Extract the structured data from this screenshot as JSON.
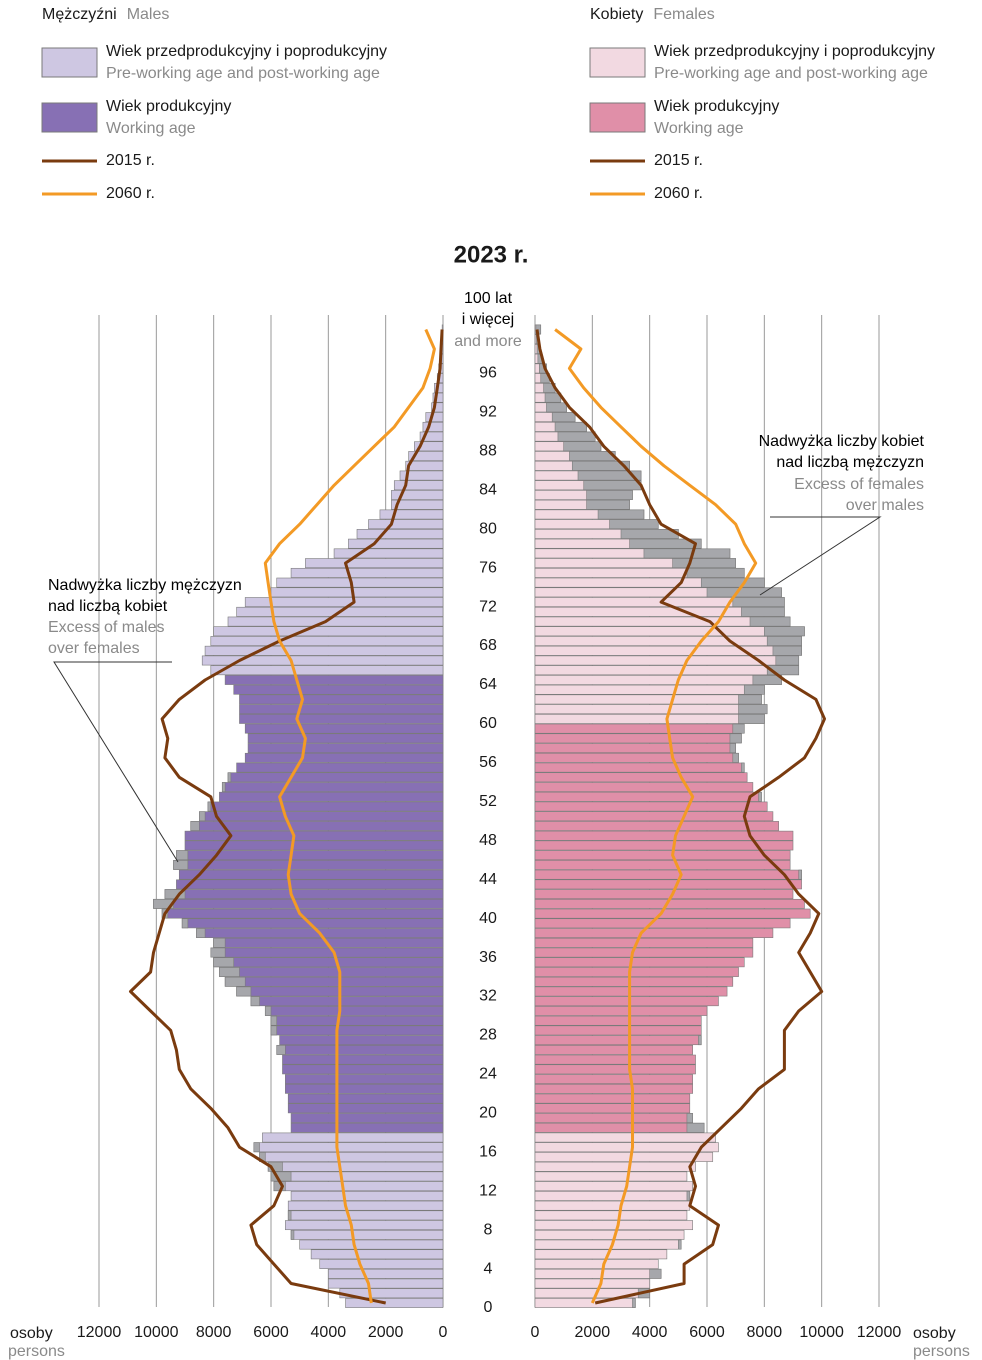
{
  "chart_data": {
    "type": "pyramid",
    "title": "2023 r.",
    "categories": [
      0,
      null,
      null,
      null,
      4,
      null,
      null,
      null,
      8,
      null,
      null,
      null,
      12,
      null,
      null,
      null,
      16,
      null,
      null,
      null,
      20,
      null,
      null,
      null,
      24,
      null,
      null,
      null,
      28,
      null,
      null,
      null,
      32,
      null,
      null,
      null,
      36,
      null,
      null,
      null,
      40,
      null,
      null,
      null,
      44,
      null,
      null,
      null,
      48,
      null,
      null,
      null,
      52,
      null,
      null,
      null,
      56,
      null,
      null,
      null,
      60,
      null,
      null,
      null,
      64,
      null,
      null,
      null,
      68,
      null,
      null,
      null,
      72,
      null,
      null,
      null,
      76,
      null,
      null,
      null,
      80,
      null,
      null,
      null,
      84,
      null,
      null,
      null,
      88,
      null,
      null,
      null,
      92,
      null,
      null,
      null,
      96,
      null,
      null,
      null,
      "100 lat\ni więcej"
    ],
    "top_label_en": "and more",
    "xlim": [
      0,
      12000
    ],
    "xticks": [
      0,
      2000,
      4000,
      6000,
      8000,
      10000,
      12000
    ],
    "xlabel": "osoby",
    "xlabel_en": "persons",
    "excess_color": "#a6a7ab",
    "panels": [
      {
        "name": "Mężczyźni",
        "name_en": "Males",
        "side": "left",
        "working_age": [
          18,
          64
        ],
        "pre_post_color": "#cec7e2",
        "working_color": "#8770b4",
        "legend": [
          {
            "label": "Wiek przedprodukcyjny i poprodukcyjny",
            "label_en": "Pre-working age and post-working age"
          },
          {
            "label": "Wiek produkcyjny",
            "label_en": "Working age"
          }
        ],
        "values": [
          3400,
          3600,
          4000,
          4000,
          4300,
          4600,
          5000,
          5300,
          5500,
          5400,
          5400,
          5300,
          5900,
          6000,
          6100,
          6400,
          6600,
          6300,
          5300,
          5300,
          5400,
          5400,
          5500,
          5500,
          5600,
          5600,
          5800,
          5700,
          6000,
          6000,
          6200,
          6700,
          7200,
          7600,
          7800,
          8000,
          8100,
          8000,
          8600,
          9100,
          9800,
          10100,
          9700,
          9300,
          9200,
          9400,
          9300,
          9000,
          9000,
          8800,
          8500,
          8200,
          7800,
          7700,
          7500,
          7200,
          6900,
          6800,
          6800,
          6900,
          7100,
          7100,
          7100,
          7300,
          7600,
          8100,
          8400,
          8300,
          8100,
          8000,
          7500,
          7200,
          6900,
          6000,
          5800,
          5300,
          4800,
          3800,
          3300,
          3000,
          2600,
          2200,
          1800,
          1800,
          1700,
          1500,
          1300,
          1200,
          1000,
          800,
          700,
          600,
          400,
          350,
          300,
          200,
          150,
          100,
          70,
          40,
          30
        ],
        "lines": [
          {
            "name": "2015 r.",
            "color": "#7a3b0f",
            "x": [
              0,
              2,
              4,
              6,
              8,
              10,
              12,
              14,
              16,
              18,
              20,
              22,
              24,
              26,
              28,
              30,
              32,
              34,
              36,
              38,
              40,
              42,
              44,
              46,
              48,
              50,
              52,
              54,
              56,
              58,
              60,
              62,
              64,
              66,
              68,
              70,
              72,
              74,
              76,
              78,
              80,
              82,
              84,
              86,
              88,
              90,
              92,
              94,
              96,
              98,
              100
            ],
            "values": [
              2000,
              5300,
              5900,
              6500,
              6700,
              5900,
              5600,
              6000,
              7100,
              7500,
              8100,
              8800,
              9200,
              9300,
              9500,
              10200,
              10900,
              10200,
              10100,
              9900,
              9700,
              9200,
              8500,
              7900,
              7400,
              7900,
              8100,
              9200,
              9700,
              9600,
              9800,
              9200,
              8300,
              7100,
              5700,
              4100,
              3100,
              3200,
              3400,
              2400,
              1800,
              1600,
              1300,
              1200,
              800,
              500,
              300,
              200,
              100,
              70,
              30
            ]
          },
          {
            "name": "2060 r.",
            "color": "#f39a25",
            "x": [
              0,
              2,
              4,
              6,
              8,
              10,
              12,
              14,
              16,
              18,
              20,
              22,
              24,
              26,
              28,
              30,
              32,
              34,
              36,
              38,
              40,
              42,
              44,
              46,
              48,
              50,
              52,
              54,
              56,
              58,
              60,
              62,
              64,
              66,
              68,
              70,
              72,
              74,
              76,
              78,
              80,
              82,
              84,
              86,
              88,
              90,
              92,
              94,
              96,
              98,
              100
            ],
            "values": [
              2500,
              2600,
              2900,
              3100,
              3200,
              3400,
              3500,
              3600,
              3700,
              3700,
              3700,
              3700,
              3700,
              3700,
              3700,
              3600,
              3600,
              3600,
              3800,
              4300,
              5000,
              5300,
              5400,
              5300,
              5200,
              5500,
              5700,
              5300,
              4900,
              4800,
              5100,
              4900,
              5100,
              5300,
              5700,
              5900,
              6000,
              6100,
              6200,
              5700,
              5000,
              4400,
              3800,
              3100,
              2400,
              1700,
              1200,
              700,
              450,
              300,
              600
            ]
          }
        ],
        "annotation": "Nadwyżka liczby mężczyzn\nnad liczbą kobiet",
        "annotation_en": "Excess of males\nover females"
      },
      {
        "name": "Kobiety",
        "name_en": "Females",
        "side": "right",
        "working_age": [
          18,
          59
        ],
        "pre_post_color": "#f2d9e1",
        "working_color": "#e08fa8",
        "legend": [
          {
            "label": "Wiek przedprodukcyjny i poprodukcyjny",
            "label_en": "Pre-working age and post-working age"
          },
          {
            "label": "Wiek produkcyjny",
            "label_en": "Working age"
          }
        ],
        "values": [
          3500,
          4000,
          4000,
          4400,
          4300,
          4600,
          5100,
          5200,
          5500,
          5300,
          5400,
          5400,
          5500,
          5300,
          5600,
          6200,
          6400,
          6300,
          5900,
          5500,
          5400,
          5400,
          5500,
          5500,
          5600,
          5600,
          5500,
          5800,
          5800,
          5800,
          6000,
          6400,
          6700,
          6900,
          7100,
          7300,
          7600,
          7600,
          8300,
          8900,
          9600,
          9400,
          9000,
          9300,
          9300,
          8900,
          8900,
          9000,
          9000,
          8500,
          8300,
          8100,
          7900,
          7600,
          7400,
          7300,
          7100,
          7000,
          7200,
          7300,
          8000,
          8100,
          7900,
          8000,
          8600,
          9200,
          9200,
          9300,
          9300,
          9400,
          8900,
          8700,
          8700,
          8600,
          8000,
          7300,
          7000,
          6800,
          5800,
          5000,
          4300,
          3800,
          3300,
          3400,
          3700,
          3700,
          3300,
          2800,
          2300,
          2100,
          1800,
          1400,
          1100,
          900,
          700,
          500,
          400,
          250,
          180,
          100,
          200
        ],
        "lines": [
          {
            "name": "2015 r.",
            "color": "#7a3b0f",
            "x": [
              0,
              2,
              4,
              6,
              8,
              10,
              12,
              14,
              16,
              18,
              20,
              22,
              24,
              26,
              28,
              30,
              32,
              34,
              36,
              38,
              40,
              42,
              44,
              46,
              48,
              50,
              52,
              54,
              56,
              58,
              60,
              62,
              64,
              66,
              68,
              70,
              72,
              74,
              76,
              78,
              80,
              82,
              84,
              86,
              88,
              90,
              92,
              94,
              96,
              98,
              100
            ],
            "values": [
              2100,
              5200,
              5200,
              6200,
              6400,
              5400,
              5600,
              5400,
              5800,
              6500,
              7200,
              7800,
              8700,
              8700,
              8700,
              9200,
              10000,
              9600,
              9200,
              9600,
              9900,
              9200,
              8700,
              8000,
              7500,
              7300,
              7500,
              8500,
              9400,
              9800,
              10100,
              9800,
              8700,
              7800,
              6800,
              6100,
              4400,
              5100,
              5400,
              5600,
              4400,
              4000,
              3700,
              3100,
              2400,
              1900,
              1200,
              700,
              350,
              170,
              70
            ]
          },
          {
            "name": "2060 r.",
            "color": "#f39a25",
            "x": [
              0,
              2,
              4,
              6,
              8,
              10,
              12,
              14,
              16,
              18,
              20,
              22,
              24,
              26,
              28,
              30,
              32,
              34,
              36,
              38,
              40,
              42,
              44,
              46,
              48,
              50,
              52,
              54,
              56,
              58,
              60,
              62,
              64,
              66,
              68,
              70,
              72,
              74,
              76,
              78,
              80,
              82,
              84,
              86,
              88,
              90,
              92,
              94,
              96,
              98,
              100
            ],
            "values": [
              2000,
              2300,
              2400,
              2700,
              2900,
              3000,
              3200,
              3300,
              3400,
              3400,
              3400,
              3400,
              3300,
              3300,
              3300,
              3300,
              3300,
              3300,
              3400,
              3700,
              4400,
              4800,
              5100,
              4800,
              4900,
              5200,
              5500,
              5100,
              4800,
              4700,
              4600,
              4800,
              5000,
              5300,
              5800,
              6400,
              6800,
              7300,
              7700,
              7300,
              7000,
              6300,
              5400,
              4500,
              3700,
              3000,
              2300,
              1700,
              1200,
              1600,
              700
            ]
          }
        ],
        "annotation": "Nadwyżka liczby kobiet\nnad liczbą mężczyzn",
        "annotation_en": "Excess of females\nover males"
      }
    ]
  }
}
